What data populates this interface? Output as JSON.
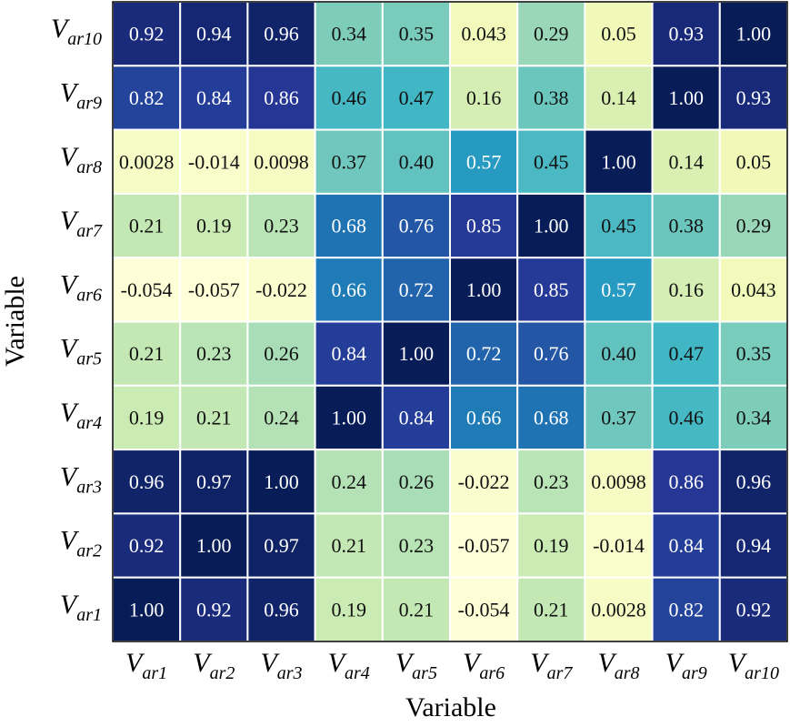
{
  "chart_data": {
    "type": "heatmap",
    "variables": [
      "ar1",
      "ar2",
      "ar3",
      "ar4",
      "ar5",
      "ar6",
      "ar7",
      "ar8",
      "ar9",
      "ar10"
    ],
    "label_main": "V",
    "label_sub_prefix": "ar",
    "x_order": [
      "ar1",
      "ar2",
      "ar3",
      "ar4",
      "ar5",
      "ar6",
      "ar7",
      "ar8",
      "ar9",
      "ar10"
    ],
    "y_order_top_to_bottom": [
      "ar10",
      "ar9",
      "ar8",
      "ar7",
      "ar6",
      "ar5",
      "ar4",
      "ar3",
      "ar2",
      "ar1"
    ],
    "xlabel": "Variable",
    "ylabel": "Variable",
    "colormap": "YlGnBu",
    "colorbar": false,
    "value_range": [
      -0.06,
      1.0
    ],
    "matrix_labels": [
      [
        "1.00",
        "0.92",
        "0.96",
        "0.19",
        "0.21",
        "-0.054",
        "0.21",
        "0.0028",
        "0.82",
        "0.92"
      ],
      [
        "0.92",
        "1.00",
        "0.97",
        "0.21",
        "0.23",
        "-0.057",
        "0.19",
        "-0.014",
        "0.84",
        "0.94"
      ],
      [
        "0.96",
        "0.97",
        "1.00",
        "0.24",
        "0.26",
        "-0.022",
        "0.23",
        "0.0098",
        "0.86",
        "0.96"
      ],
      [
        "0.19",
        "0.21",
        "0.24",
        "1.00",
        "0.84",
        "0.66",
        "0.68",
        "0.37",
        "0.46",
        "0.34"
      ],
      [
        "0.21",
        "0.23",
        "0.26",
        "0.84",
        "1.00",
        "0.72",
        "0.76",
        "0.40",
        "0.47",
        "0.35"
      ],
      [
        "-0.054",
        "-0.057",
        "-0.022",
        "0.66",
        "0.72",
        "1.00",
        "0.85",
        "0.57",
        "0.16",
        "0.043"
      ],
      [
        "0.21",
        "0.19",
        "0.23",
        "0.68",
        "0.76",
        "0.85",
        "1.00",
        "0.45",
        "0.38",
        "0.29"
      ],
      [
        "0.0028",
        "-0.014",
        "0.0098",
        "0.37",
        "0.40",
        "0.57",
        "0.45",
        "1.00",
        "0.14",
        "0.05"
      ],
      [
        "0.82",
        "0.84",
        "0.86",
        "0.46",
        "0.47",
        "0.16",
        "0.38",
        "0.14",
        "1.00",
        "0.93"
      ],
      [
        "0.92",
        "0.94",
        "0.96",
        "0.34",
        "0.35",
        "0.043",
        "0.29",
        "0.05",
        "0.93",
        "1.00"
      ]
    ]
  }
}
